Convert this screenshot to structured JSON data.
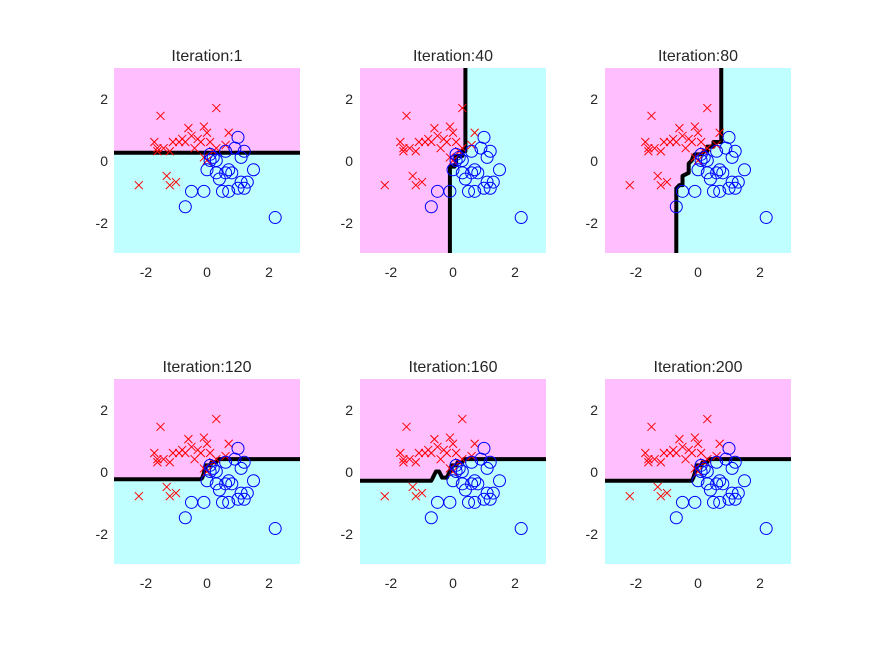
{
  "figure": {
    "background": "#ffffff",
    "region_colors": {
      "cross_class": "#ffbfff",
      "circle_class": "#bfffff"
    },
    "boundary_color": "#000000",
    "cross_color": "#ff0000",
    "circle_color": "#0000ff"
  },
  "chart_data": [
    {
      "type": "scatter",
      "title": "Iteration:1",
      "xlim": [
        -3,
        3
      ],
      "ylim": [
        -3,
        3
      ],
      "xticks": [
        "-2",
        "0",
        "2"
      ],
      "yticks": [
        "-2",
        "0",
        "2"
      ],
      "grid": false,
      "series": [
        {
          "marker": "x",
          "x": [
            -2.2,
            -1.7,
            -1.6,
            -1.6,
            -1.5,
            -1.4,
            -1.3,
            -1.2,
            -1.2,
            -1.1,
            -1.0,
            -0.9,
            -0.8,
            -0.7,
            -0.6,
            -0.5,
            -0.4,
            -0.3,
            -0.2,
            -0.1,
            -0.1,
            0.0,
            0.0,
            0.1,
            0.2,
            0.3,
            0.3,
            0.6,
            0.7
          ],
          "y": [
            -0.8,
            0.6,
            0.4,
            0.3,
            1.45,
            0.4,
            -0.5,
            -0.8,
            0.3,
            0.6,
            -0.7,
            0.6,
            0.7,
            0.6,
            1.05,
            0.8,
            0.4,
            0.7,
            0.6,
            0.1,
            1.1,
            0.9,
            0.0,
            0.6,
            0.3,
            1.7,
            0.4,
            0.5,
            0.9
          ]
        },
        {
          "marker": "o",
          "x": [
            -0.7,
            -0.5,
            -0.1,
            0.0,
            0.1,
            0.1,
            0.2,
            0.3,
            0.3,
            0.4,
            0.5,
            0.6,
            0.6,
            0.7,
            0.7,
            0.8,
            0.9,
            1.0,
            1.0,
            1.1,
            1.1,
            1.2,
            1.2,
            1.3,
            1.5,
            2.2
          ],
          "y": [
            -1.5,
            -1.0,
            -1.0,
            -0.3,
            0.0,
            0.2,
            0.1,
            0.0,
            -0.4,
            -0.6,
            -1.0,
            -0.4,
            0.3,
            -0.3,
            -1.0,
            -0.4,
            0.4,
            0.75,
            -0.9,
            0.1,
            -0.7,
            0.3,
            -0.9,
            -0.7,
            -0.3,
            -1.85
          ]
        }
      ],
      "decision_boundary": {
        "x": [
          -3,
          3
        ],
        "y": [
          0.25,
          0.25
        ]
      }
    },
    {
      "type": "scatter",
      "title": "Iteration:40",
      "xlim": [
        -3,
        3
      ],
      "ylim": [
        -3,
        3
      ],
      "xticks": [
        "-2",
        "0",
        "2"
      ],
      "yticks": [
        "-2",
        "0",
        "2"
      ],
      "grid": false,
      "series": "same points as Iteration:1",
      "decision_boundary": {
        "x": [
          -0.1,
          -0.1,
          0.05,
          0.1,
          0.1,
          0.3,
          0.3,
          0.4,
          0.4
        ],
        "y": [
          -3,
          -0.2,
          -0.2,
          -0.05,
          0.15,
          0.15,
          0.3,
          0.3,
          3
        ]
      }
    },
    {
      "type": "scatter",
      "title": "Iteration:80",
      "xlim": [
        -3,
        3
      ],
      "ylim": [
        -3,
        3
      ],
      "xticks": [
        "-2",
        "0",
        "2"
      ],
      "yticks": [
        "-2",
        "0",
        "2"
      ],
      "grid": false,
      "series": "same points as Iteration:1",
      "decision_boundary": {
        "x": [
          -0.7,
          -0.7,
          -0.6,
          -0.5,
          -0.5,
          -0.3,
          -0.3,
          -0.2,
          -0.15,
          -0.1,
          0.1,
          0.2,
          0.3,
          0.3,
          0.5,
          0.5,
          0.75,
          0.75
        ],
        "y": [
          -3,
          -0.9,
          -0.8,
          -0.8,
          -0.5,
          -0.4,
          -0.1,
          0.0,
          0.15,
          0.2,
          0.2,
          0.3,
          0.3,
          0.45,
          0.45,
          0.6,
          0.6,
          3
        ]
      }
    },
    {
      "type": "scatter",
      "title": "Iteration:120",
      "xlim": [
        -3,
        3
      ],
      "ylim": [
        -3,
        3
      ],
      "xticks": [
        "-2",
        "0",
        "2"
      ],
      "yticks": [
        "-2",
        "0",
        "2"
      ],
      "grid": false,
      "series": "same points as Iteration:1",
      "decision_boundary": {
        "x": [
          -3,
          -0.2,
          -0.15,
          -0.1,
          -0.05,
          0.1,
          0.15,
          0.3,
          0.35,
          3
        ],
        "y": [
          -0.25,
          -0.25,
          -0.2,
          -0.05,
          0.2,
          0.2,
          0.3,
          0.3,
          0.4,
          0.4
        ]
      }
    },
    {
      "type": "scatter",
      "title": "Iteration:160",
      "xlim": [
        -3,
        3
      ],
      "ylim": [
        -3,
        3
      ],
      "xticks": [
        "-2",
        "0",
        "2"
      ],
      "yticks": [
        "-2",
        "0",
        "2"
      ],
      "grid": false,
      "series": "same points as Iteration:1",
      "decision_boundary": {
        "x": [
          -3,
          -0.7,
          -0.65,
          -0.55,
          -0.45,
          -0.35,
          -0.2,
          -0.1,
          -0.05,
          0.1,
          0.15,
          0.3,
          0.35,
          3
        ],
        "y": [
          -0.3,
          -0.3,
          -0.2,
          0.0,
          0.0,
          -0.2,
          -0.2,
          0.0,
          0.2,
          0.2,
          0.3,
          0.3,
          0.4,
          0.4
        ]
      }
    },
    {
      "type": "scatter",
      "title": "Iteration:200",
      "xlim": [
        -3,
        3
      ],
      "ylim": [
        -3,
        3
      ],
      "xticks": [
        "-2",
        "0",
        "2"
      ],
      "yticks": [
        "-2",
        "0",
        "2"
      ],
      "grid": false,
      "series": "same points as Iteration:1",
      "decision_boundary": {
        "x": [
          -3,
          -0.2,
          -0.15,
          -0.1,
          -0.05,
          0.1,
          0.15,
          0.3,
          0.35,
          3
        ],
        "y": [
          -0.3,
          -0.3,
          -0.2,
          -0.05,
          0.2,
          0.2,
          0.3,
          0.3,
          0.4,
          0.4
        ]
      }
    }
  ]
}
